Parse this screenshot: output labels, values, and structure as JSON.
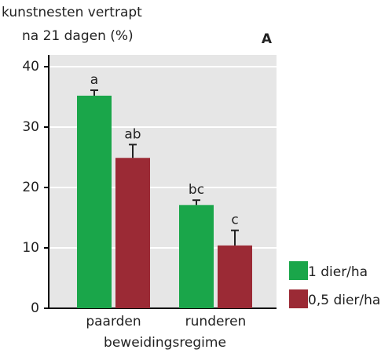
{
  "chart_data": {
    "type": "bar",
    "title_lines": [
      "kunstnesten vertrapt",
      "na 21 dagen (%)"
    ],
    "panel_label": "A",
    "xlabel": "beweidingsregime",
    "categories": [
      "paarden",
      "runderen"
    ],
    "series": [
      {
        "name": "1 dier/ha",
        "color": "#1aa64a",
        "values": [
          35.2,
          17.1
        ],
        "errors": [
          0.9,
          0.8
        ],
        "letters": [
          "a",
          "bc"
        ]
      },
      {
        "name": "0,5 dier/ha",
        "color": "#9b2a35",
        "values": [
          24.9,
          10.4
        ],
        "errors": [
          2.2,
          2.5
        ],
        "letters": [
          "ab",
          "c"
        ]
      }
    ],
    "ylim": [
      0,
      42
    ],
    "yticks": [
      0,
      10,
      20,
      30,
      40
    ],
    "grid": true
  }
}
